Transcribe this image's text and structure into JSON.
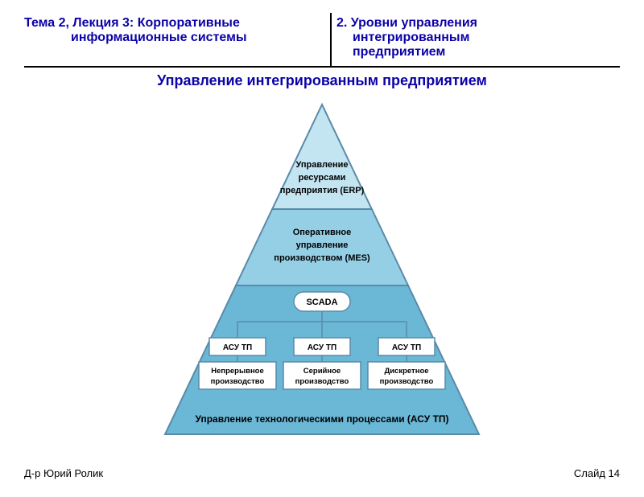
{
  "colors": {
    "theme_blue": "#0b02a7",
    "stroke": "#000000",
    "pyramid_stroke": "#5a8aa8",
    "tier_fill_light": "#c3e5f2",
    "tier_fill_mid": "#95cfe6",
    "tier_fill_dark": "#6bb7d6",
    "box_fill": "#ffffff",
    "box_stroke": "#5a8aa8",
    "connector": "#5a8aa8"
  },
  "header": {
    "topic_prefix": "Тема 2,",
    "lecture": " Лекция 3: Корпоративные",
    "lecture_sub": "информационные системы",
    "right_num": "2.",
    "right_title": " Уровни управления",
    "right_sub1": "интегрированным",
    "right_sub2": "предприятием"
  },
  "title": "Управление интегрированным предприятием",
  "footer": {
    "left": "Д-р Юрий Ролик",
    "right": "Слайд 14"
  },
  "pyramid": {
    "type": "hierarchy-pyramid",
    "levels": [
      {
        "lines": [
          "Управление",
          "ресурсами",
          "предприятия (ERP)"
        ],
        "fontsize": 11
      },
      {
        "lines": [
          "Оперативное",
          "управление",
          "производством (MES)"
        ],
        "fontsize": 11
      },
      {
        "hub": "SCADA",
        "children": [
          {
            "top": "АСУ ТП",
            "bottom_lines": [
              "Непрерывное",
              "производство"
            ]
          },
          {
            "top": "АСУ ТП",
            "bottom_lines": [
              "Серийное",
              "производство"
            ]
          },
          {
            "top": "АСУ ТП",
            "bottom_lines": [
              "Дискретное",
              "производство"
            ]
          }
        ],
        "bottom_label": "Управление технологическими процессами (АСУ ТП)",
        "fontsize": 12
      }
    ]
  }
}
